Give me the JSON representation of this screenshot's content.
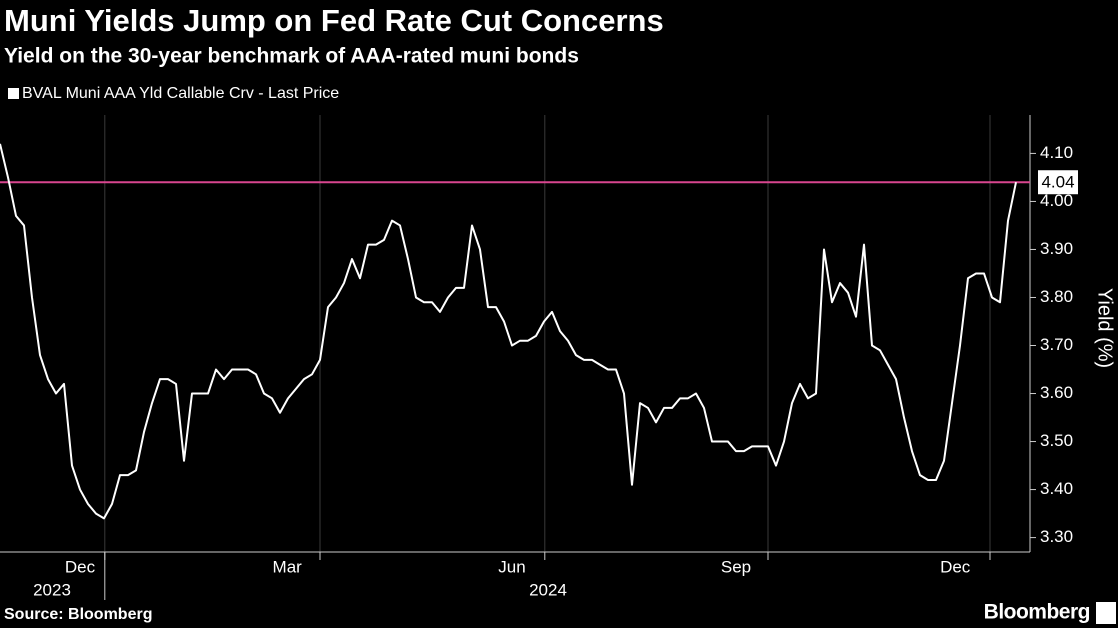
{
  "chart_data": {
    "type": "line",
    "title": "Muni Yields Jump on Fed Rate Cut Concerns",
    "subtitle": "Yield on the 30-year benchmark of AAA-rated muni bonds",
    "source": "Source: Bloomberg",
    "brand": "Bloomberg",
    "y_label": "Yield (%)",
    "series": [
      {
        "name": "BVAL Muni AAA Yld Callable Crv - Last Price",
        "color": "#ffffff",
        "values": [
          4.12,
          4.05,
          3.97,
          3.95,
          3.8,
          3.68,
          3.63,
          3.6,
          3.62,
          3.45,
          3.4,
          3.37,
          3.35,
          3.34,
          3.37,
          3.43,
          3.43,
          3.44,
          3.52,
          3.58,
          3.63,
          3.63,
          3.62,
          3.46,
          3.6,
          3.6,
          3.6,
          3.65,
          3.63,
          3.65,
          3.65,
          3.65,
          3.64,
          3.6,
          3.59,
          3.56,
          3.59,
          3.61,
          3.63,
          3.64,
          3.67,
          3.78,
          3.8,
          3.83,
          3.88,
          3.84,
          3.91,
          3.91,
          3.92,
          3.96,
          3.95,
          3.88,
          3.8,
          3.79,
          3.79,
          3.77,
          3.8,
          3.82,
          3.82,
          3.95,
          3.9,
          3.78,
          3.78,
          3.75,
          3.7,
          3.71,
          3.71,
          3.72,
          3.75,
          3.77,
          3.73,
          3.71,
          3.68,
          3.67,
          3.67,
          3.66,
          3.65,
          3.65,
          3.6,
          3.41,
          3.58,
          3.57,
          3.54,
          3.57,
          3.57,
          3.59,
          3.59,
          3.6,
          3.57,
          3.5,
          3.5,
          3.5,
          3.48,
          3.48,
          3.49,
          3.49,
          3.49,
          3.45,
          3.5,
          3.58,
          3.62,
          3.59,
          3.6,
          3.9,
          3.79,
          3.83,
          3.81,
          3.76,
          3.91,
          3.7,
          3.69,
          3.66,
          3.63,
          3.55,
          3.48,
          3.43,
          3.42,
          3.42,
          3.46,
          3.58,
          3.7,
          3.84,
          3.85,
          3.85,
          3.8,
          3.79,
          3.96,
          4.04
        ]
      }
    ],
    "xlim": [
      0,
      127
    ],
    "ylim": [
      3.27,
      4.18
    ],
    "yticks": [
      {
        "value": 3.3,
        "label": "3.30"
      },
      {
        "value": 3.4,
        "label": "3.40"
      },
      {
        "value": 3.5,
        "label": "3.50"
      },
      {
        "value": 3.6,
        "label": "3.60"
      },
      {
        "value": 3.7,
        "label": "3.70"
      },
      {
        "value": 3.8,
        "label": "3.80"
      },
      {
        "value": 3.9,
        "label": "3.90"
      },
      {
        "value": 4.0,
        "label": "4.00"
      },
      {
        "value": 4.1,
        "label": "4.10"
      }
    ],
    "xgrid": [
      13.1,
      40,
      68.1,
      96,
      123.75
    ],
    "xlabels": [
      {
        "value": 10,
        "label": "Dec"
      },
      {
        "value": 35.9,
        "label": "Mar"
      },
      {
        "value": 64,
        "label": "Jun"
      },
      {
        "value": 92,
        "label": "Sep"
      },
      {
        "value": 119.4,
        "label": "Dec"
      }
    ],
    "years": [
      {
        "value": 6.5,
        "label": "2023"
      },
      {
        "value": 68.5,
        "label": "2024"
      }
    ],
    "reference_line": {
      "value": 4.04,
      "color": "#d9468f"
    },
    "grid": true
  }
}
